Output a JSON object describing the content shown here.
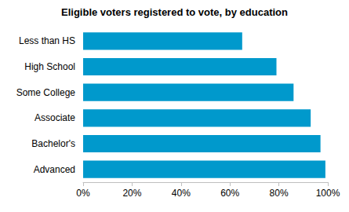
{
  "chart_data": {
    "type": "bar",
    "orientation": "horizontal",
    "title": "Eligible voters registered to vote, by education",
    "categories": [
      "Less than HS",
      "High School",
      "Some College",
      "Associate",
      "Bachelor's",
      "Advanced"
    ],
    "values": [
      65,
      79,
      86,
      93,
      97,
      99
    ],
    "color": "#0099cc",
    "xlim": [
      0,
      100
    ],
    "xticks": [
      {
        "value": 0,
        "label": "0%"
      },
      {
        "value": 20,
        "label": "20%"
      },
      {
        "value": 40,
        "label": "40%"
      },
      {
        "value": 60,
        "label": "60%"
      },
      {
        "value": 80,
        "label": "80%"
      },
      {
        "value": 100,
        "label": "100%"
      }
    ],
    "grid": false
  }
}
